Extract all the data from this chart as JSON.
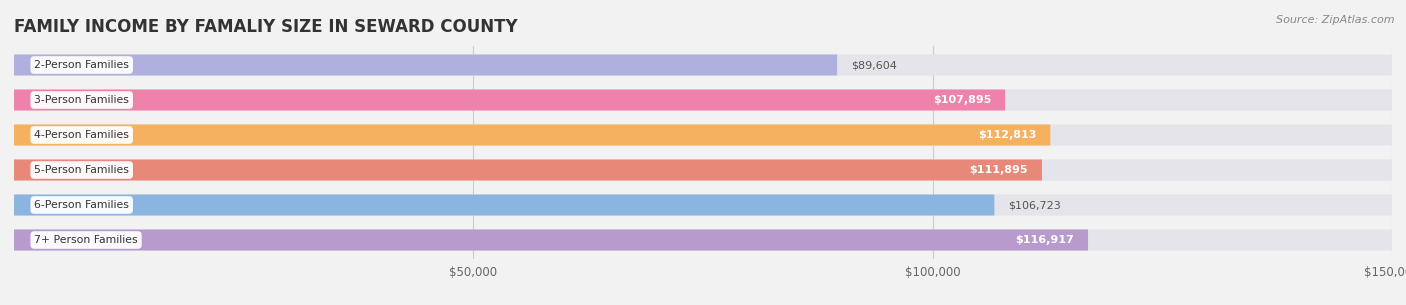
{
  "title": "FAMILY INCOME BY FAMALIY SIZE IN SEWARD COUNTY",
  "source": "Source: ZipAtlas.com",
  "categories": [
    "2-Person Families",
    "3-Person Families",
    "4-Person Families",
    "5-Person Families",
    "6-Person Families",
    "7+ Person Families"
  ],
  "values": [
    89604,
    107895,
    112813,
    111895,
    106723,
    116917
  ],
  "labels": [
    "$89,604",
    "$107,895",
    "$112,813",
    "$111,895",
    "$106,723",
    "$116,917"
  ],
  "label_inside": [
    false,
    true,
    true,
    true,
    false,
    true
  ],
  "bar_colors": [
    "#b0b0de",
    "#ee82aa",
    "#f5b060",
    "#e88878",
    "#8cb4e0",
    "#b89acc"
  ],
  "xlim": [
    0,
    150000
  ],
  "background_color": "#f2f2f2",
  "bar_bg_color": "#e4e4ea",
  "title_fontsize": 12,
  "source_fontsize": 8
}
